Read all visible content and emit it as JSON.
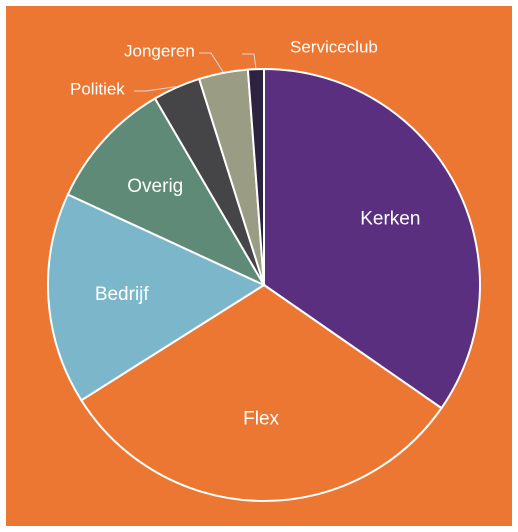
{
  "chart_data": {
    "type": "pie",
    "title": "",
    "categories": [
      "Kerken",
      "Flex",
      "Bedrijf",
      "Overig",
      "Politiek",
      "Jongeren",
      "Serviceclub"
    ],
    "values": [
      35.0,
      31.7,
      16.0,
      9.8,
      3.6,
      3.7,
      1.2
    ],
    "colors": [
      "#5b2f80",
      "#ec7732",
      "#7bb6cb",
      "#5f8a78",
      "#454547",
      "#9a9c84",
      "#2d2340"
    ],
    "background": "#ec7732",
    "slice_border": "#ffffff",
    "start_angle_deg": 0,
    "direction": "clockwise",
    "legend": "none",
    "label_style": [
      "inside",
      "inside",
      "inside",
      "inside",
      "callout",
      "callout",
      "callout"
    ]
  }
}
